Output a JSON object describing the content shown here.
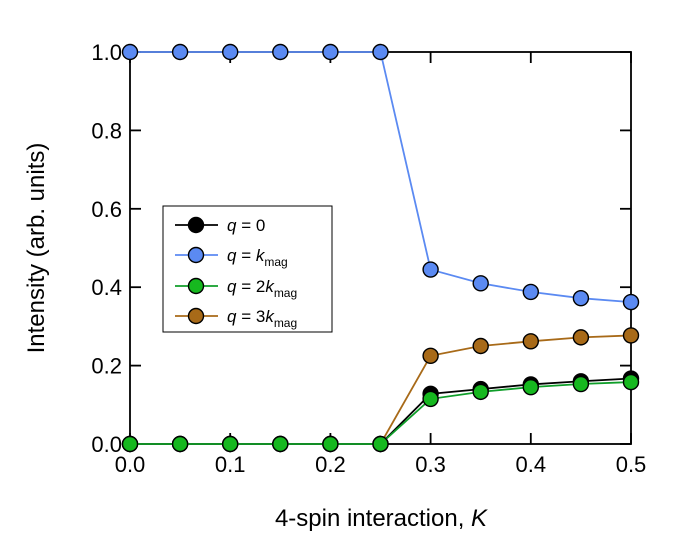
{
  "chart_data": {
    "type": "line",
    "title": "",
    "xlabel_text": "4-spin interaction, ",
    "xlabel_var": "K",
    "ylabel": "Intensity (arb. units)",
    "xlim": [
      0.0,
      0.5
    ],
    "ylim": [
      0.0,
      1.0
    ],
    "x_ticks": [
      "0.0",
      "0.1",
      "0.2",
      "0.3",
      "0.4",
      "0.5"
    ],
    "y_ticks": [
      "0.0",
      "0.2",
      "0.4",
      "0.6",
      "0.8",
      "1.0"
    ],
    "x": [
      0.0,
      0.05,
      0.1,
      0.15,
      0.2,
      0.25,
      0.3,
      0.35,
      0.4,
      0.45,
      0.5
    ],
    "series": [
      {
        "name": "q = 0",
        "label_var": "q",
        "label_eq": " = 0",
        "label_coef": "",
        "label_k": "",
        "label_sub": "",
        "line_color": "#000000",
        "fill_color": "#000000",
        "values": [
          0,
          0,
          0,
          0,
          0,
          0,
          0.128,
          0.14,
          0.152,
          0.16,
          0.167
        ]
      },
      {
        "name": "q = k_mag",
        "label_var": "q",
        "label_eq": " = ",
        "label_coef": "",
        "label_k": "k",
        "label_sub": "mag",
        "line_color": "#5b8af2",
        "fill_color": "#5b8af2",
        "values": [
          1.0,
          1.0,
          1.0,
          1.0,
          1.0,
          1.0,
          0.445,
          0.41,
          0.388,
          0.372,
          0.362
        ]
      },
      {
        "name": "q = 2k_mag",
        "label_var": "q",
        "label_eq": " = ",
        "label_coef": "2",
        "label_k": "k",
        "label_sub": "mag",
        "line_color": "#109e2a",
        "fill_color": "#16b81f",
        "values": [
          0,
          0,
          0,
          0,
          0,
          0,
          0.115,
          0.133,
          0.145,
          0.153,
          0.158
        ]
      },
      {
        "name": "q = 3k_mag",
        "label_var": "q",
        "label_eq": " = ",
        "label_coef": "3",
        "label_k": "k",
        "label_sub": "mag",
        "line_color": "#a86a18",
        "fill_color": "#a86a18",
        "values": [
          0,
          0,
          0,
          0,
          0,
          0,
          0.225,
          0.25,
          0.262,
          0.272,
          0.277
        ]
      }
    ],
    "legend_position": "center-left"
  }
}
